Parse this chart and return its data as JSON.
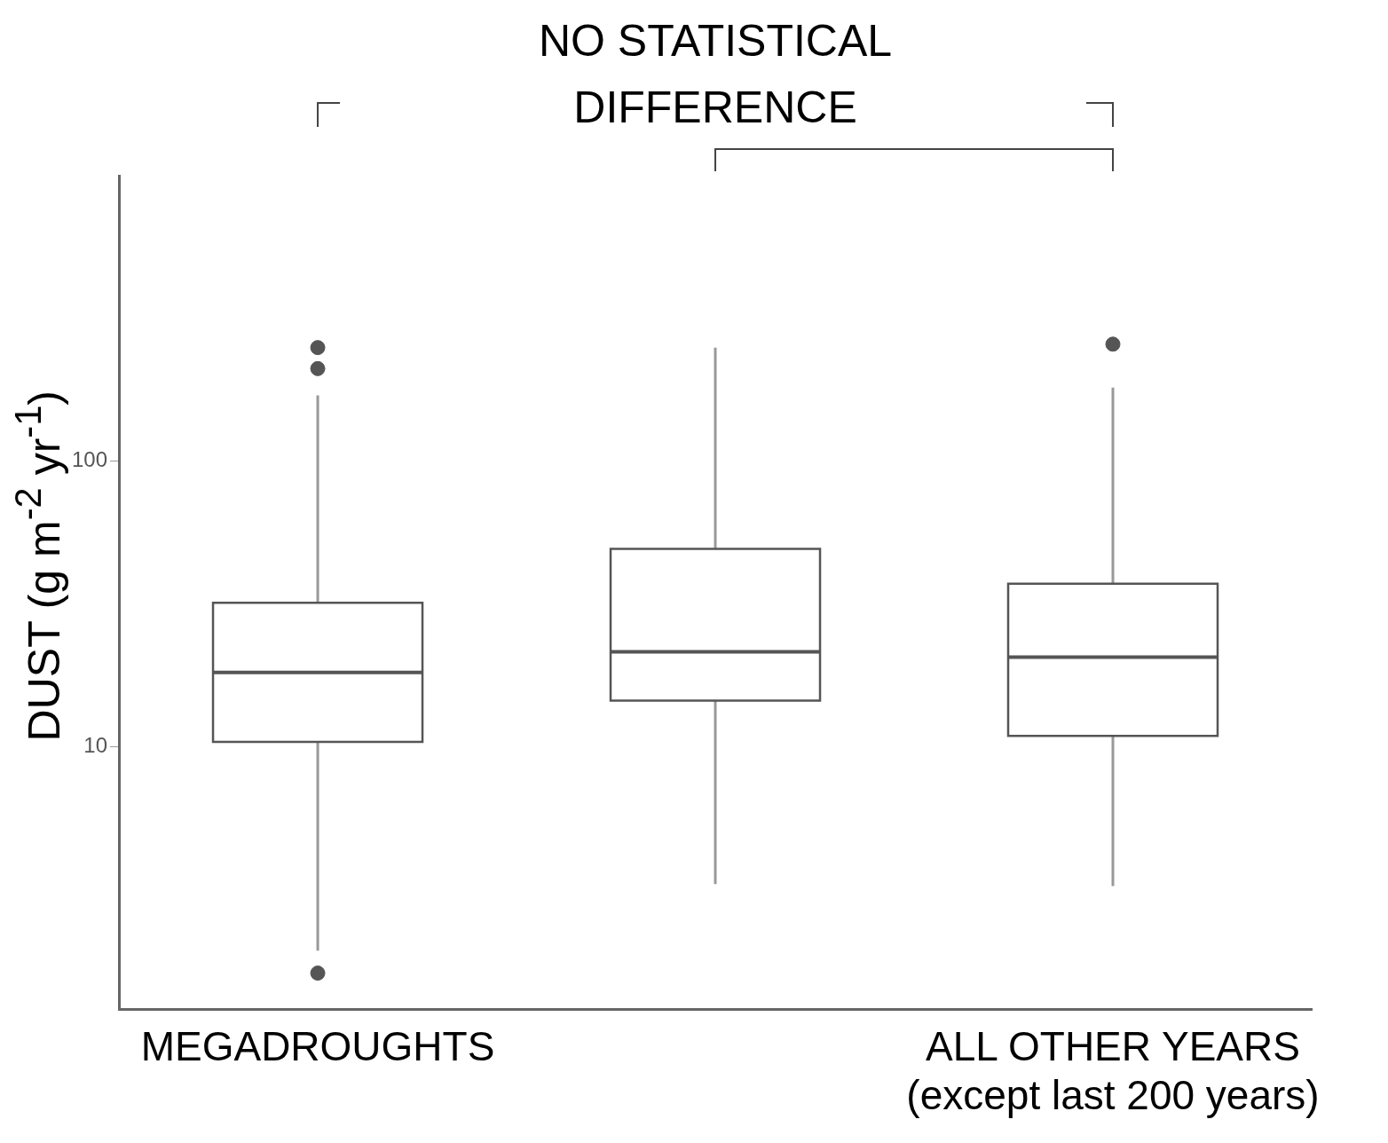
{
  "chart_data": {
    "type": "box",
    "ylabel": "DUST (g m$^{-2}$ yr$^{-1}$)",
    "categories": [
      "MEGADROUGHTS",
      null,
      "ALL OTHER YEARS\n(except last 200 years)"
    ],
    "boxes": [
      {
        "low": 1.93,
        "q1": 10.4,
        "median": 18.2,
        "q3": 31.9,
        "high": 170,
        "outliers": [
          1.61,
          211,
          250
        ]
      },
      {
        "low": 3.3,
        "q1": 14.5,
        "median": 21.5,
        "q3": 49.3,
        "high": 250
      },
      {
        "low": 3.25,
        "q1": 10.9,
        "median": 20.6,
        "q3": 37.2,
        "high": 181,
        "outliers": [
          257
        ]
      }
    ],
    "color": "#555555",
    "log": true,
    "ylim": [
      1.2,
      1000
    ],
    "yticks": [
      10,
      100
    ],
    "grid": false,
    "annotations": [
      "NO STATISTICAL\nDIFFERENCE"
    ]
  }
}
